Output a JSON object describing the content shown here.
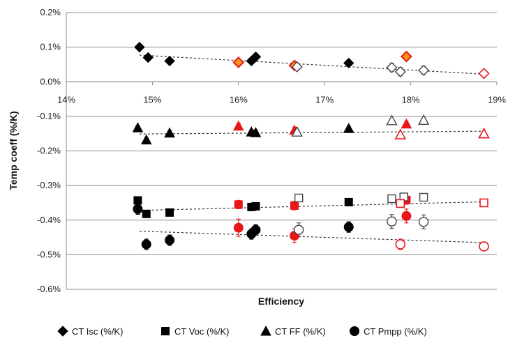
{
  "chart_data": {
    "type": "scatter",
    "xlabel": "Efficiency",
    "ylabel": "Temp coeff (%/K)",
    "xlim": [
      14,
      19
    ],
    "ylim": [
      -0.6,
      0.2
    ],
    "x_ticks": [
      14,
      15,
      16,
      17,
      18,
      19
    ],
    "x_tick_labels": [
      "14%",
      "15%",
      "16%",
      "17%",
      "18%",
      "19%"
    ],
    "y_ticks": [
      0.2,
      0.1,
      0.0,
      -0.1,
      -0.2,
      -0.3,
      -0.4,
      -0.5,
      -0.6
    ],
    "y_tick_labels": [
      "0.2%",
      "0.1%",
      "0.0%",
      "-0.1%",
      "-0.2%",
      "-0.3%",
      "-0.4%",
      "-0.5%",
      "-0.6%"
    ],
    "grid": "horizontal",
    "legend_position": "bottom",
    "colors": {
      "black": "#000000",
      "red": "#e8161b",
      "orange": "#f39a1e",
      "gray": "#444444"
    },
    "series": [
      {
        "name": "CT Isc (%/K)",
        "marker": "diamond",
        "points": [
          {
            "x": 14.85,
            "y": 0.1,
            "err": 0.008,
            "style": "filled-black"
          },
          {
            "x": 14.95,
            "y": 0.07,
            "err": 0.005,
            "style": "filled-black"
          },
          {
            "x": 15.2,
            "y": 0.06,
            "err": 0.006,
            "style": "filled-black"
          },
          {
            "x": 16.15,
            "y": 0.06,
            "err": 0.006,
            "style": "filled-black"
          },
          {
            "x": 16.2,
            "y": 0.072,
            "err": 0.008,
            "style": "filled-black"
          },
          {
            "x": 17.28,
            "y": 0.054,
            "err": 0.005,
            "style": "filled-black"
          },
          {
            "x": 16.0,
            "y": 0.056,
            "err": 0.005,
            "style": "red-orange"
          },
          {
            "x": 16.65,
            "y": 0.047,
            "err": 0.008,
            "style": "red-orange"
          },
          {
            "x": 17.95,
            "y": 0.073,
            "err": 0.008,
            "style": "red-orange"
          },
          {
            "x": 16.68,
            "y": 0.043,
            "err": 0.01,
            "style": "open-gray"
          },
          {
            "x": 17.78,
            "y": 0.041,
            "err": 0.012,
            "style": "open-gray"
          },
          {
            "x": 17.88,
            "y": 0.029,
            "err": 0.012,
            "style": "open-gray"
          },
          {
            "x": 18.15,
            "y": 0.033,
            "err": 0.012,
            "style": "open-gray"
          },
          {
            "x": 18.85,
            "y": 0.024,
            "err": 0.005,
            "style": "open-red"
          }
        ],
        "trend": {
          "x": [
            14.85,
            18.85
          ],
          "y": [
            0.077,
            0.022
          ]
        }
      },
      {
        "name": "CT Voc (%/K)",
        "marker": "square",
        "points": [
          {
            "x": 14.83,
            "y": -0.343,
            "err": 0.01,
            "style": "filled-black"
          },
          {
            "x": 14.93,
            "y": -0.382,
            "err": 0.008,
            "style": "filled-black"
          },
          {
            "x": 15.2,
            "y": -0.378,
            "err": 0.008,
            "style": "filled-black"
          },
          {
            "x": 16.15,
            "y": -0.362,
            "err": 0.008,
            "style": "filled-black"
          },
          {
            "x": 16.2,
            "y": -0.36,
            "err": 0.008,
            "style": "filled-black"
          },
          {
            "x": 17.28,
            "y": -0.348,
            "err": 0.008,
            "style": "filled-black"
          },
          {
            "x": 16.0,
            "y": -0.355,
            "err": 0.012,
            "style": "filled-red"
          },
          {
            "x": 16.65,
            "y": -0.358,
            "err": 0.012,
            "style": "filled-red"
          },
          {
            "x": 17.95,
            "y": -0.342,
            "err": 0.012,
            "style": "filled-red"
          },
          {
            "x": 16.7,
            "y": -0.336,
            "err": 0.008,
            "style": "open-gray"
          },
          {
            "x": 17.78,
            "y": -0.338,
            "err": 0.008,
            "style": "open-gray"
          },
          {
            "x": 17.92,
            "y": -0.333,
            "err": 0.008,
            "style": "open-gray"
          },
          {
            "x": 18.15,
            "y": -0.334,
            "err": 0.008,
            "style": "open-gray"
          },
          {
            "x": 17.88,
            "y": -0.352,
            "err": 0.01,
            "style": "open-red"
          },
          {
            "x": 18.85,
            "y": -0.35,
            "err": 0.006,
            "style": "open-red"
          }
        ],
        "trend": {
          "x": [
            14.85,
            18.85
          ],
          "y": [
            -0.372,
            -0.347
          ]
        }
      },
      {
        "name": "CT FF (%/K)",
        "marker": "triangle",
        "points": [
          {
            "x": 14.83,
            "y": -0.133,
            "err": 0.006,
            "style": "filled-black"
          },
          {
            "x": 14.93,
            "y": -0.168,
            "err": 0.006,
            "style": "filled-black"
          },
          {
            "x": 15.2,
            "y": -0.148,
            "err": 0.006,
            "style": "filled-black"
          },
          {
            "x": 16.15,
            "y": -0.145,
            "err": 0.006,
            "style": "filled-black"
          },
          {
            "x": 16.2,
            "y": -0.147,
            "err": 0.006,
            "style": "filled-black"
          },
          {
            "x": 17.28,
            "y": -0.135,
            "err": 0.006,
            "style": "filled-black"
          },
          {
            "x": 16.0,
            "y": -0.128,
            "err": 0.008,
            "style": "filled-red"
          },
          {
            "x": 16.65,
            "y": -0.14,
            "err": 0.008,
            "style": "filled-red"
          },
          {
            "x": 17.95,
            "y": -0.122,
            "err": 0.008,
            "style": "filled-red"
          },
          {
            "x": 16.68,
            "y": -0.145,
            "err": 0.006,
            "style": "open-gray"
          },
          {
            "x": 17.78,
            "y": -0.112,
            "err": 0.006,
            "style": "open-gray"
          },
          {
            "x": 18.15,
            "y": -0.111,
            "err": 0.006,
            "style": "open-gray"
          },
          {
            "x": 17.88,
            "y": -0.153,
            "err": 0.006,
            "style": "open-red"
          },
          {
            "x": 18.85,
            "y": -0.15,
            "err": 0.005,
            "style": "open-red"
          }
        ],
        "trend": {
          "x": [
            14.85,
            18.85
          ],
          "y": [
            -0.151,
            -0.143
          ]
        }
      },
      {
        "name": "CT Pmpp (%/K)",
        "marker": "circle",
        "points": [
          {
            "x": 14.83,
            "y": -0.368,
            "err": 0.015,
            "style": "filled-black"
          },
          {
            "x": 14.93,
            "y": -0.47,
            "err": 0.015,
            "style": "filled-black"
          },
          {
            "x": 15.2,
            "y": -0.458,
            "err": 0.015,
            "style": "filled-black"
          },
          {
            "x": 16.15,
            "y": -0.44,
            "err": 0.015,
            "style": "filled-black"
          },
          {
            "x": 16.2,
            "y": -0.428,
            "err": 0.015,
            "style": "filled-black"
          },
          {
            "x": 17.28,
            "y": -0.42,
            "err": 0.015,
            "style": "filled-black"
          },
          {
            "x": 16.0,
            "y": -0.422,
            "err": 0.025,
            "style": "filled-red"
          },
          {
            "x": 16.65,
            "y": -0.445,
            "err": 0.02,
            "style": "filled-red"
          },
          {
            "x": 17.95,
            "y": -0.388,
            "err": 0.02,
            "style": "filled-red"
          },
          {
            "x": 16.7,
            "y": -0.428,
            "err": 0.02,
            "style": "open-gray"
          },
          {
            "x": 17.78,
            "y": -0.404,
            "err": 0.02,
            "style": "open-gray"
          },
          {
            "x": 18.15,
            "y": -0.405,
            "err": 0.02,
            "style": "open-gray"
          },
          {
            "x": 17.88,
            "y": -0.47,
            "err": 0.015,
            "style": "open-red"
          },
          {
            "x": 18.85,
            "y": -0.476,
            "err": 0.008,
            "style": "open-red"
          }
        ],
        "trend": {
          "x": [
            14.85,
            18.85
          ],
          "y": [
            -0.432,
            -0.465
          ]
        }
      }
    ]
  }
}
